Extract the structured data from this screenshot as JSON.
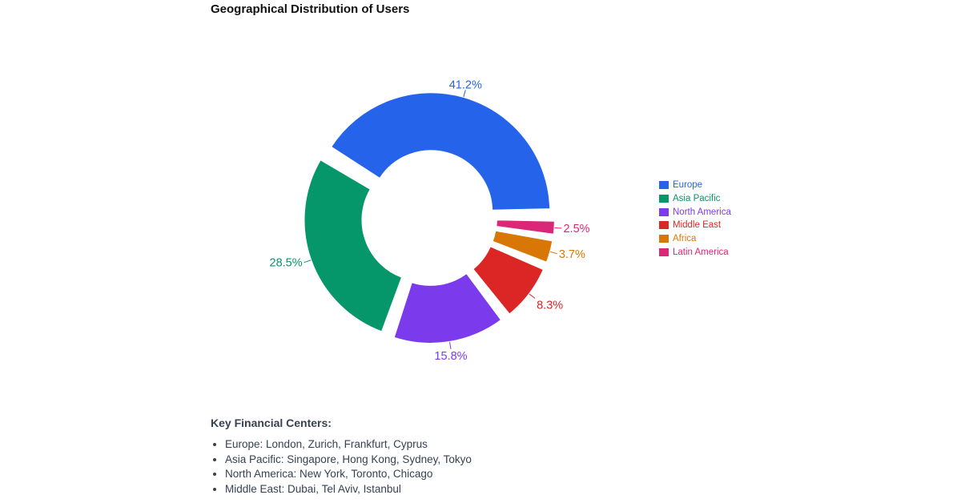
{
  "chart_data": {
    "type": "pie",
    "variant": "donut",
    "title": "Geographical Distribution of Users",
    "series": [
      {
        "name": "Europe",
        "value": 41.2,
        "label": "41.2%",
        "color": "#2563eb"
      },
      {
        "name": "Asia Pacific",
        "value": 28.5,
        "label": "28.5%",
        "color": "#059669"
      },
      {
        "name": "North America",
        "value": 15.8,
        "label": "15.8%",
        "color": "#7c3aed"
      },
      {
        "name": "Middle East",
        "value": 8.3,
        "label": "8.3%",
        "color": "#dc2626"
      },
      {
        "name": "Africa",
        "value": 3.7,
        "label": "3.7%",
        "color": "#d97706"
      },
      {
        "name": "Latin America",
        "value": 2.5,
        "label": "2.5%",
        "color": "#db2777"
      }
    ],
    "legend_position": "right"
  },
  "info": {
    "heading": "Key Financial Centers:",
    "items": [
      "Europe: London, Zurich, Frankfurt, Cyprus",
      "Asia Pacific: Singapore, Hong Kong, Sydney, Tokyo",
      "North America: New York, Toronto, Chicago",
      "Middle East: Dubai, Tel Aviv, Istanbul"
    ]
  }
}
